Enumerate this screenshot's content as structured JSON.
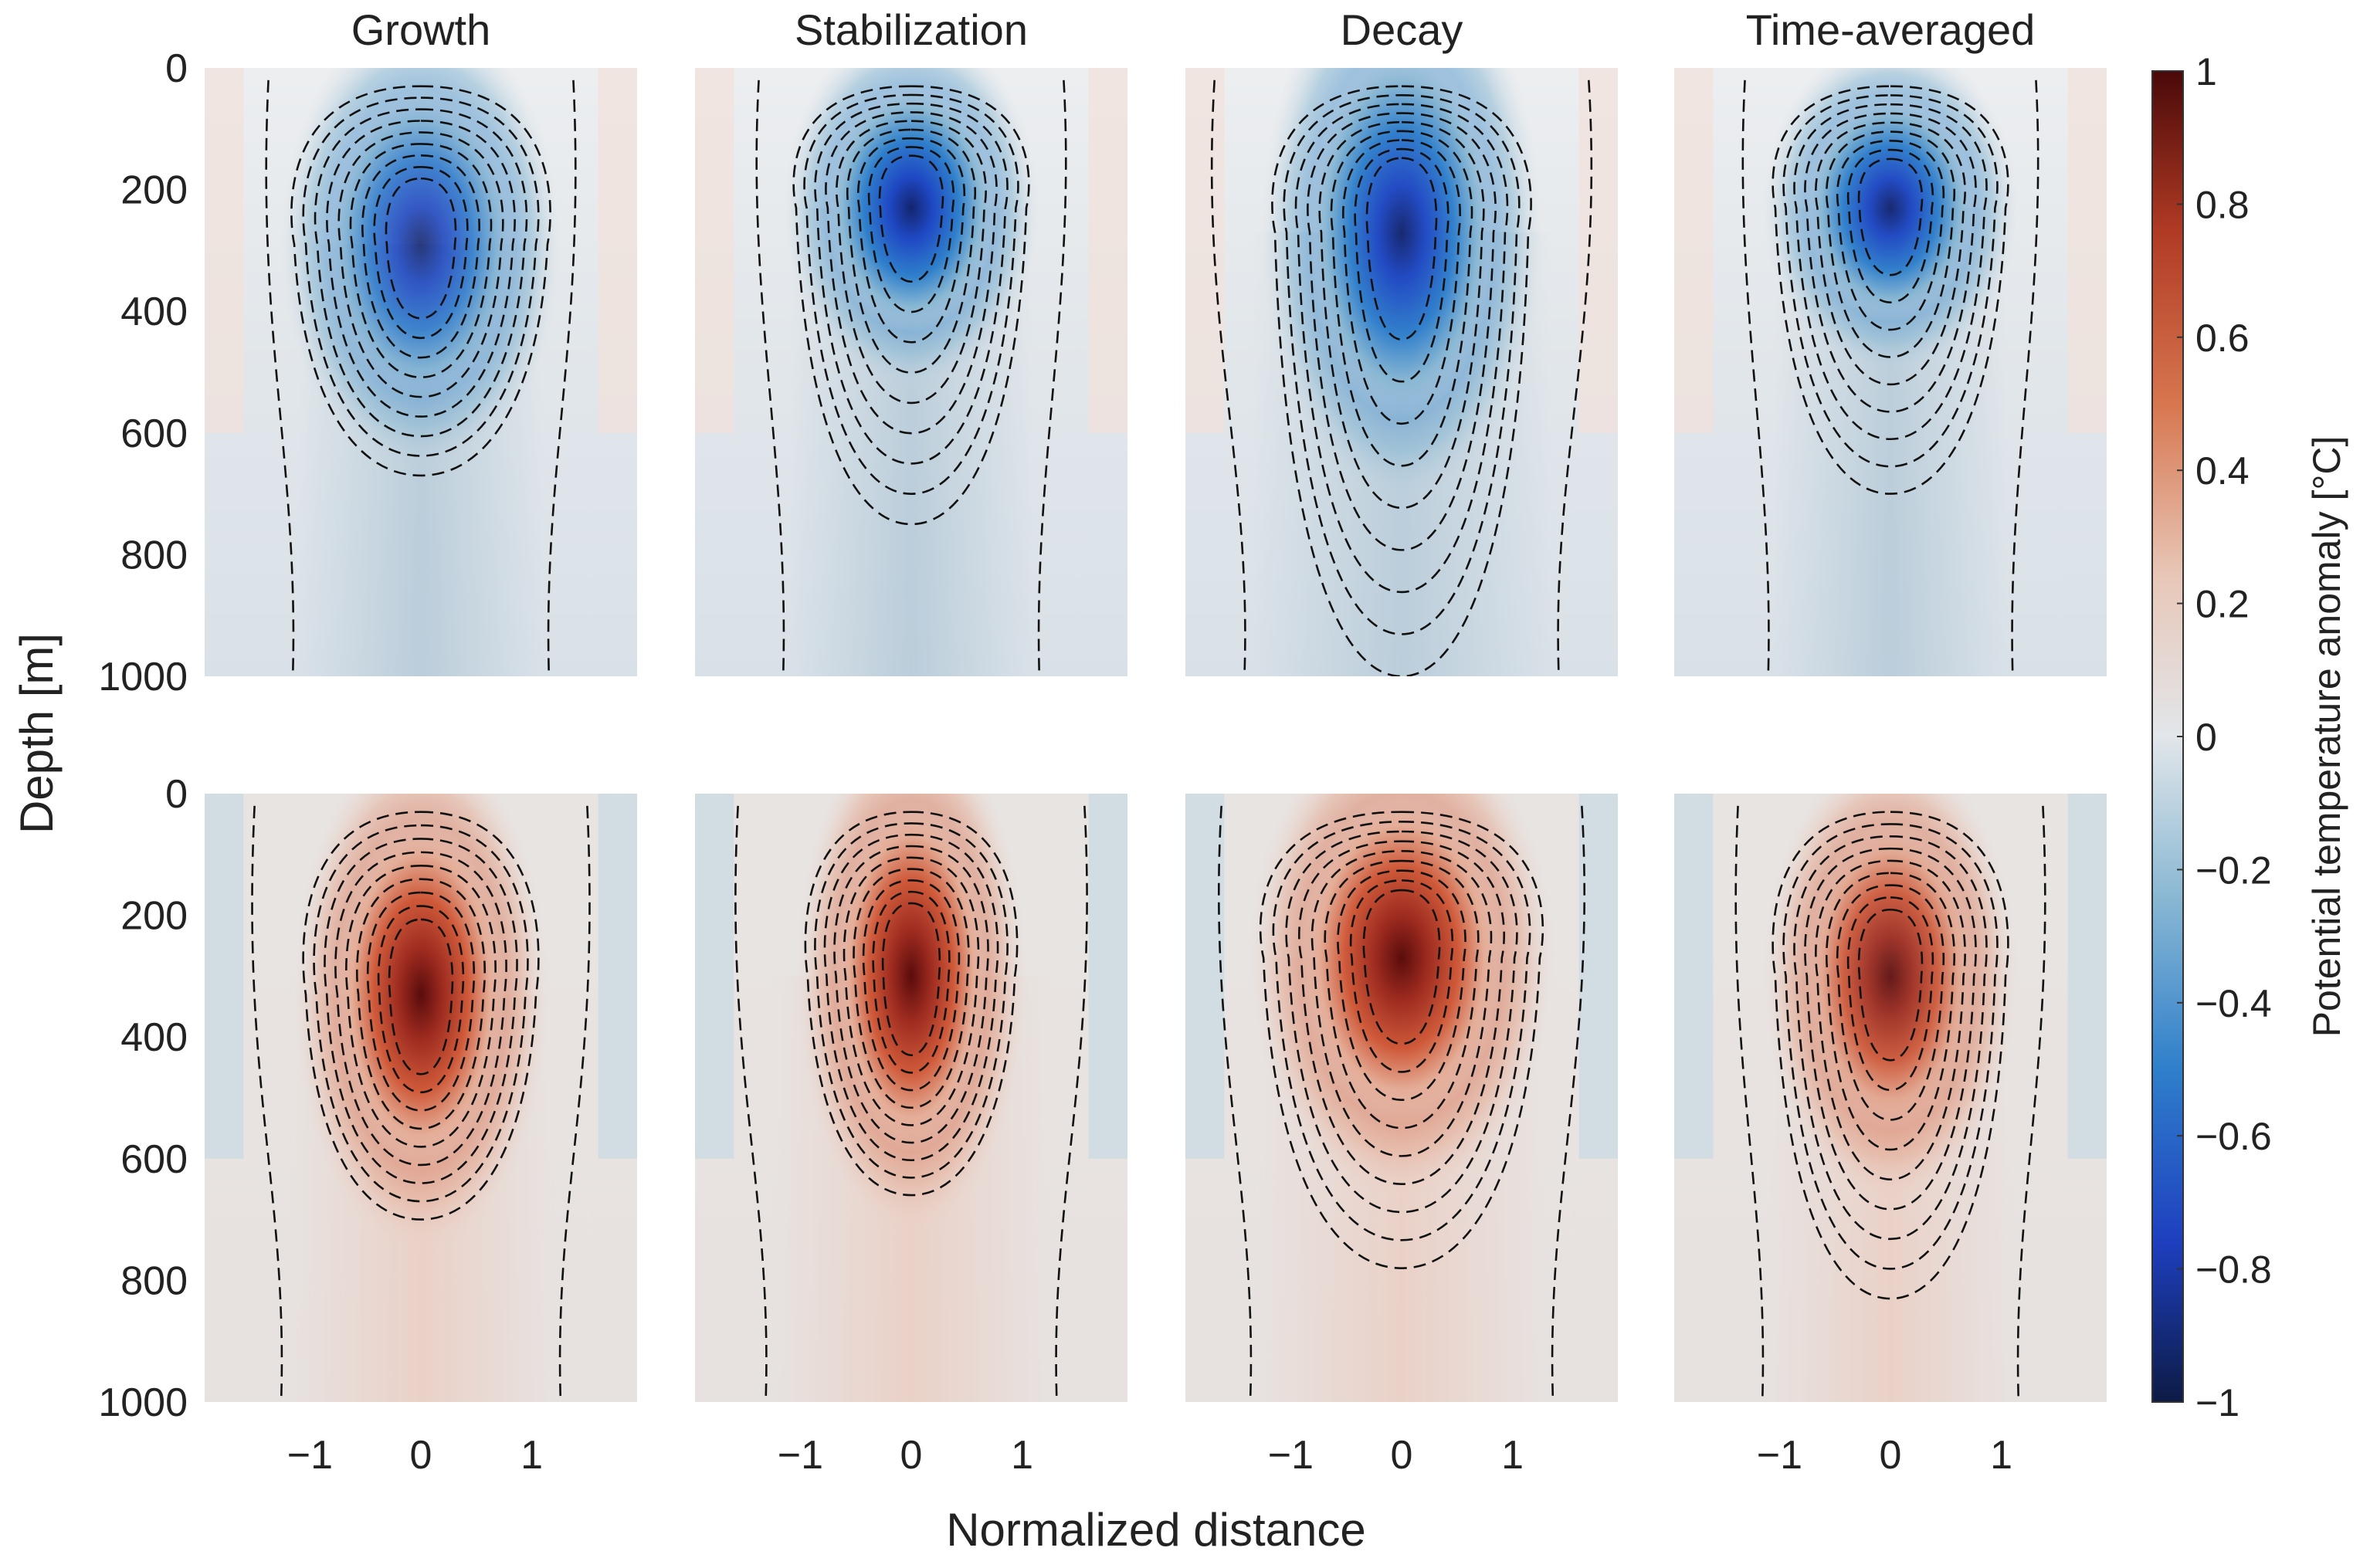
{
  "chart_data": {
    "type": "heatmap",
    "xlabel": "Normalized distance",
    "ylabel": "Depth [m]",
    "xlim": [
      -1.95,
      1.95
    ],
    "ylim": [
      0,
      1000
    ],
    "x_ticks": [
      -1,
      0,
      1
    ],
    "x_tick_labels": [
      "−1",
      "0",
      "1"
    ],
    "y_ticks": [
      0,
      200,
      400,
      600,
      800,
      1000
    ],
    "y_tick_labels": [
      "0",
      "200",
      "400",
      "600",
      "800",
      "1000"
    ],
    "colorbar": {
      "label": "Potential temperature anomaly [°C]",
      "range": [
        -1,
        1
      ],
      "ticks": [
        1,
        0.8,
        0.6,
        0.4,
        0.2,
        0,
        -0.2,
        -0.4,
        -0.6,
        -0.8,
        -1
      ],
      "tick_labels": [
        "1",
        "0.8",
        "0.6",
        "0.4",
        "0.2",
        "0",
        "−0.2",
        "−0.4",
        "−0.6",
        "−0.8",
        "−1"
      ],
      "colors": [
        "#0d1b45",
        "#1e3fbf",
        "#2f7fcb",
        "#8ab8d3",
        "#e2e6ea",
        "#e8c7b8",
        "#d7764f",
        "#b03a24",
        "#4a0909"
      ]
    },
    "contour_style": "dashed black",
    "panels": [
      {
        "title": "Growth",
        "row": "top",
        "sign": "cold",
        "peak": -0.65,
        "core_depth": 290,
        "core_halfwidth": 0.55,
        "core_halfdepth": 150,
        "contour_bottom": 670,
        "outer_contour_width": 1.1
      },
      {
        "title": "Stabilization",
        "row": "top",
        "sign": "cold",
        "peak": -0.95,
        "core_depth": 230,
        "core_halfwidth": 0.5,
        "core_halfdepth": 120,
        "contour_bottom": 750,
        "outer_contour_width": 1.1
      },
      {
        "title": "Decay",
        "row": "top",
        "sign": "cold",
        "peak": -0.85,
        "core_depth": 270,
        "core_halfwidth": 0.55,
        "core_halfdepth": 180,
        "contour_bottom": 1000,
        "outer_contour_width": 1.35
      },
      {
        "title": "Time-averaged",
        "row": "top",
        "sign": "cold",
        "peak": -0.85,
        "core_depth": 230,
        "core_halfwidth": 0.5,
        "core_halfdepth": 110,
        "contour_bottom": 700,
        "outer_contour_width": 1.05
      },
      {
        "title": "",
        "row": "bottom",
        "sign": "warm",
        "peak": 0.9,
        "core_depth": 330,
        "core_halfwidth": 0.5,
        "core_halfdepth": 170,
        "contour_bottom": 700,
        "outer_contour_width": 1.2
      },
      {
        "title": "",
        "row": "bottom",
        "sign": "warm",
        "peak": 0.98,
        "core_depth": 300,
        "core_halfwidth": 0.45,
        "core_halfdepth": 170,
        "contour_bottom": 660,
        "outer_contour_width": 1.25
      },
      {
        "title": "",
        "row": "bottom",
        "sign": "warm",
        "peak": 0.9,
        "core_depth": 270,
        "core_halfwidth": 0.6,
        "core_halfdepth": 160,
        "contour_bottom": 780,
        "outer_contour_width": 1.3
      },
      {
        "title": "",
        "row": "bottom",
        "sign": "warm",
        "peak": 0.75,
        "core_depth": 300,
        "core_halfwidth": 0.5,
        "core_halfdepth": 150,
        "contour_bottom": 830,
        "outer_contour_width": 1.1
      }
    ]
  }
}
